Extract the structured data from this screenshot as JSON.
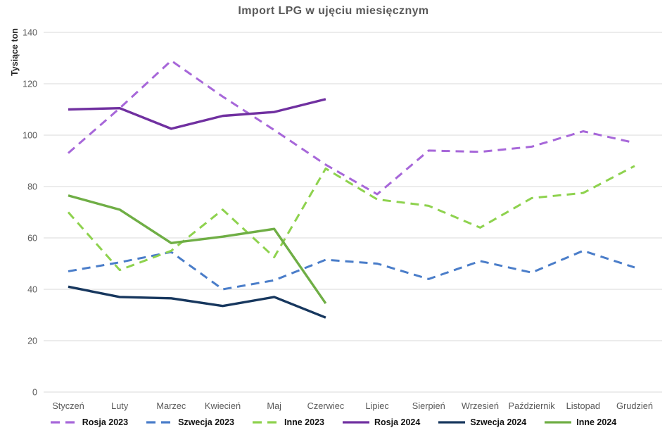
{
  "chart_data": {
    "type": "line",
    "title": "Import LPG w ujęciu miesięcznym",
    "ylabel": "Tysiące ton",
    "xlabel": "",
    "ylim": [
      0,
      140
    ],
    "yticks": [
      0,
      20,
      40,
      60,
      80,
      100,
      120,
      140
    ],
    "grid": true,
    "legend_position": "bottom",
    "categories": [
      "Styczeń",
      "Luty",
      "Marzec",
      "Kwiecień",
      "Maj",
      "Czerwiec",
      "Lipiec",
      "Sierpień",
      "Wrzesień",
      "Październik",
      "Listopad",
      "Grudzień"
    ],
    "series": [
      {
        "name": "Rosja 2023",
        "style": "dashed",
        "color": "#a767d9",
        "values": [
          93,
          110.5,
          129,
          115,
          102,
          88.5,
          77,
          94,
          93.5,
          95.5,
          101.5,
          97
        ]
      },
      {
        "name": "Szwecja 2023",
        "style": "dashed",
        "color": "#4a7dc9",
        "values": [
          47,
          50.5,
          54.5,
          40,
          43.5,
          51.5,
          50,
          44,
          51,
          46.5,
          55,
          48.5
        ]
      },
      {
        "name": "Inne 2023",
        "style": "dashed",
        "color": "#8ed24e",
        "values": [
          70,
          47.5,
          55,
          71,
          52.5,
          87,
          75,
          72.5,
          64,
          75.5,
          77.5,
          88
        ]
      },
      {
        "name": "Rosja 2024",
        "style": "solid",
        "color": "#7030a0",
        "values": [
          110,
          110.5,
          102.5,
          107.5,
          109,
          114
        ]
      },
      {
        "name": "Szwecja 2024",
        "style": "solid",
        "color": "#17375e",
        "values": [
          41,
          37,
          36.5,
          33.5,
          37,
          29
        ]
      },
      {
        "name": "Inne 2024",
        "style": "solid",
        "color": "#6fae45",
        "values": [
          76.5,
          71,
          58,
          60.5,
          63.5,
          34.5
        ]
      }
    ]
  },
  "colors": {
    "gridline": "#d9d9d9",
    "axis_text": "#595959",
    "title_text": "#595959",
    "legend_text": "#111111"
  }
}
